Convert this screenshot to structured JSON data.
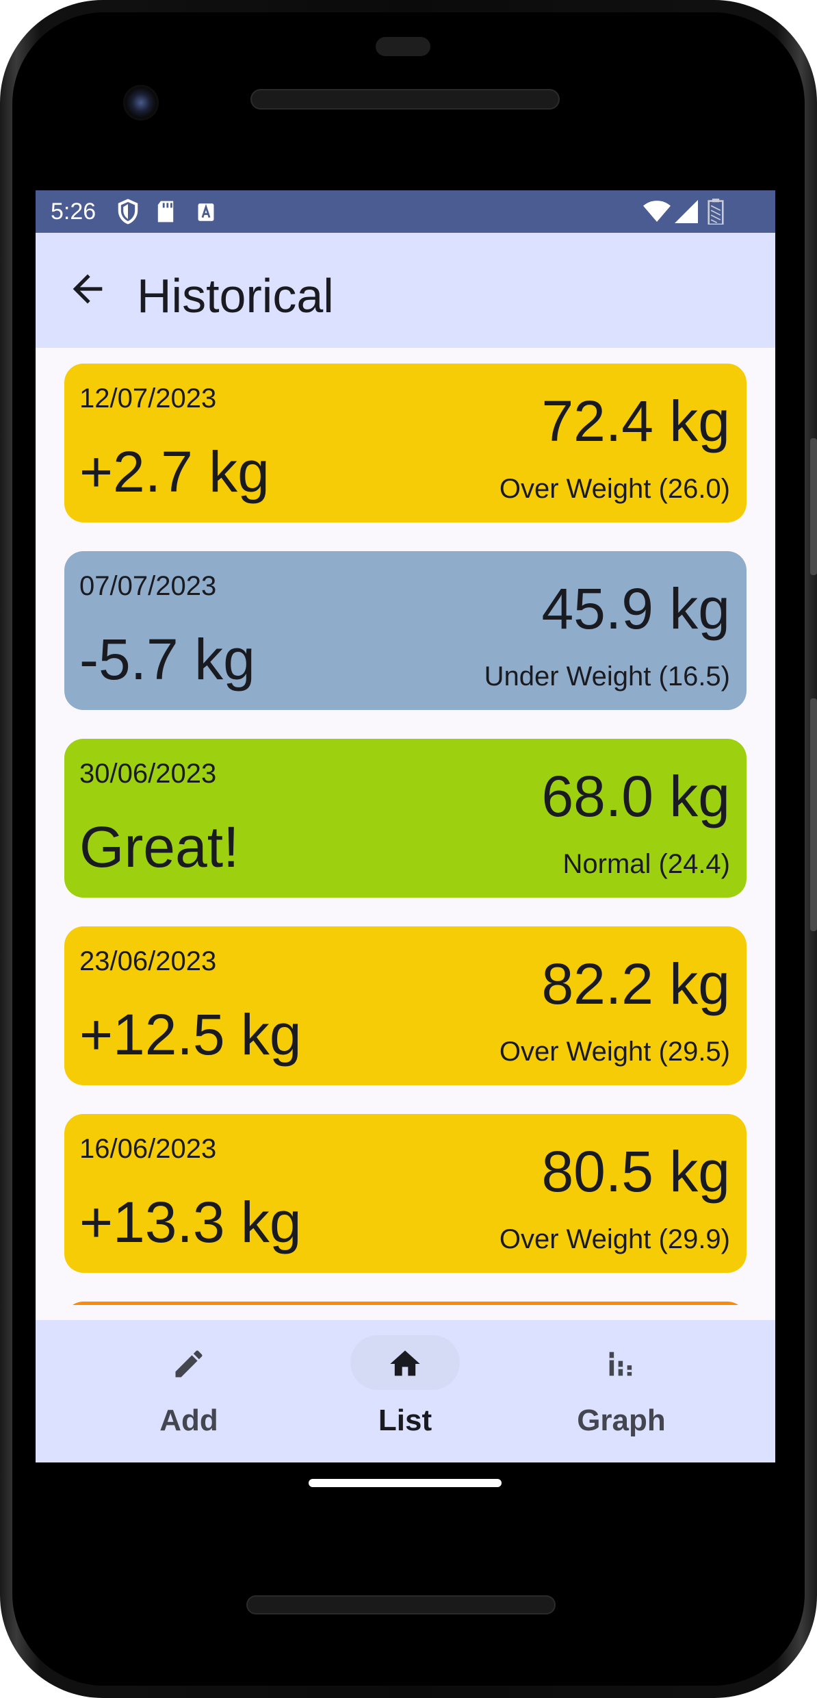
{
  "status_bar": {
    "time": "5:26"
  },
  "app_bar": {
    "title": "Historical"
  },
  "entries": [
    {
      "date": "12/07/2023",
      "diff": "+2.7 kg",
      "weight": "72.4 kg",
      "bmi": "Over Weight (26.0)",
      "color": "#f6cc07"
    },
    {
      "date": "07/07/2023",
      "diff": "-5.7 kg",
      "weight": "45.9 kg",
      "bmi": "Under Weight (16.5)",
      "color": "#8faccb"
    },
    {
      "date": "30/06/2023",
      "diff": "Great!",
      "weight": "68.0 kg",
      "bmi": "Normal (24.4)",
      "color": "#9dd00f"
    },
    {
      "date": "23/06/2023",
      "diff": "+12.5 kg",
      "weight": "82.2 kg",
      "bmi": "Over Weight (29.5)",
      "color": "#f6cc07"
    },
    {
      "date": "16/06/2023",
      "diff": "+13.3 kg",
      "weight": "80.5 kg",
      "bmi": "Over Weight (29.9)",
      "color": "#f6cc07"
    },
    {
      "date": "",
      "diff": "",
      "weight": "",
      "bmi": "",
      "color": "#fb8a0a"
    }
  ],
  "bottom_nav": {
    "items": [
      {
        "label": "Add",
        "icon": "pencil-icon",
        "active": false
      },
      {
        "label": "List",
        "icon": "home-icon",
        "active": true
      },
      {
        "label": "Graph",
        "icon": "bar-chart-icon",
        "active": false
      }
    ]
  }
}
